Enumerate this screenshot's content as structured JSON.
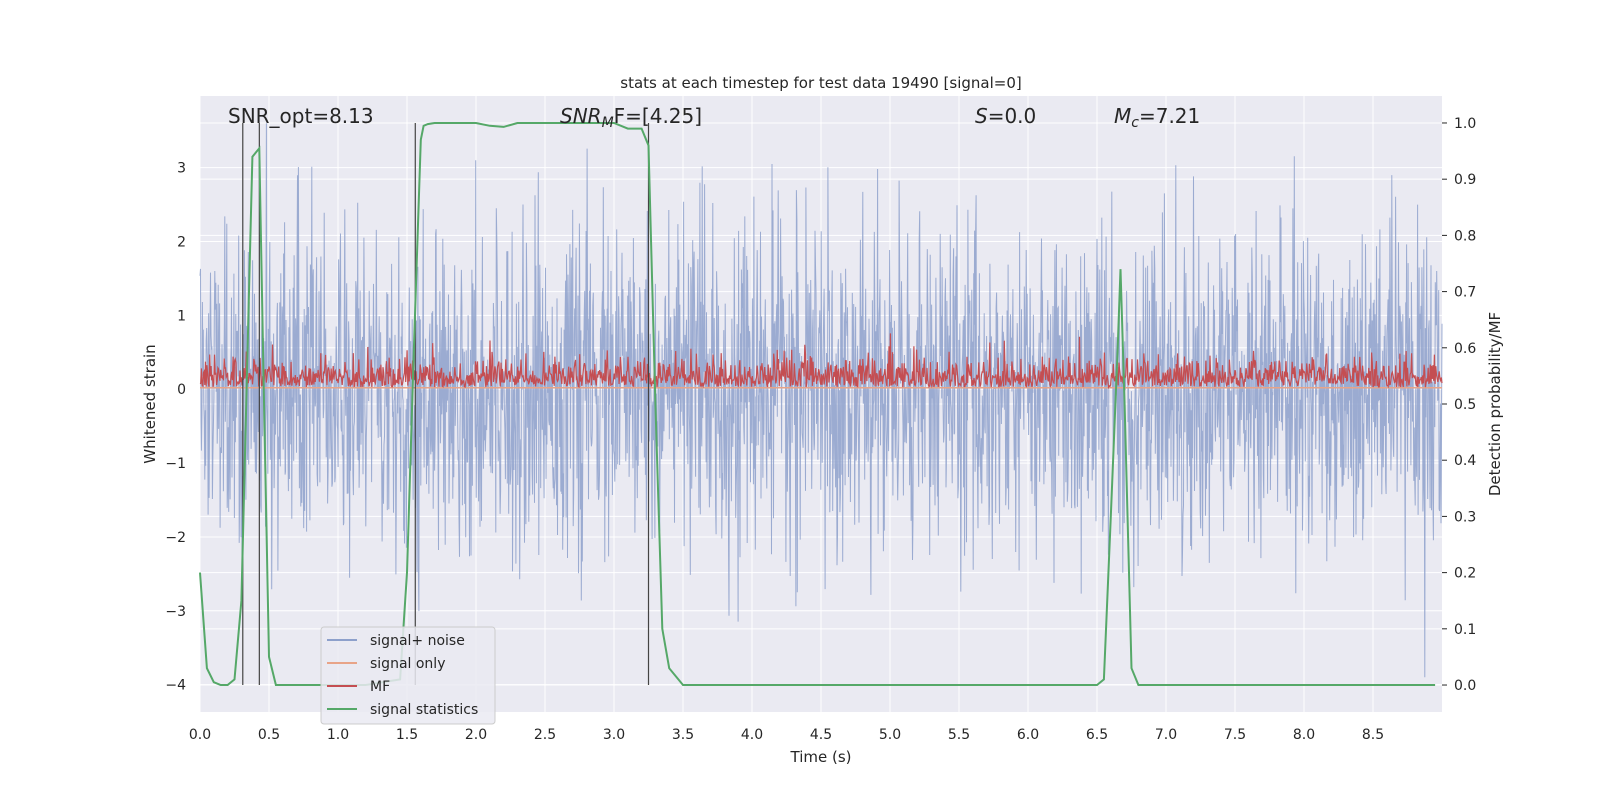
{
  "chart_data": {
    "type": "line",
    "title": "stats at each timestep for test data 19490 [signal=0]",
    "xlabel": "Time (s)",
    "ylabel_left": "Whitened strain",
    "ylabel_right": "Detection probability/MF",
    "xlim": [
      0.0,
      9.0
    ],
    "ylim_left": [
      -4.37,
      3.97
    ],
    "ylim_right": [
      -0.048,
      1.048
    ],
    "xticks": [
      "0.0",
      "0.5",
      "1.0",
      "1.5",
      "2.0",
      "2.5",
      "3.0",
      "3.5",
      "4.0",
      "4.5",
      "5.0",
      "5.5",
      "6.0",
      "6.5",
      "7.0",
      "7.5",
      "8.0",
      "8.5"
    ],
    "xtick_values": [
      0.0,
      0.5,
      1.0,
      1.5,
      2.0,
      2.5,
      3.0,
      3.5,
      4.0,
      4.5,
      5.0,
      5.5,
      6.0,
      6.5,
      7.0,
      7.5,
      8.0,
      8.5
    ],
    "yticks_left": [
      "−4",
      "−3",
      "−2",
      "−1",
      "0",
      "1",
      "2",
      "3"
    ],
    "ytick_values_left": [
      -4,
      -3,
      -2,
      -1,
      0,
      1,
      2,
      3
    ],
    "yticks_right": [
      "0.0",
      "0.1",
      "0.2",
      "0.3",
      "0.4",
      "0.5",
      "0.6",
      "0.7",
      "0.8",
      "0.9",
      "1.0"
    ],
    "ytick_values_right": [
      0.0,
      0.1,
      0.2,
      0.3,
      0.4,
      0.5,
      0.6,
      0.7,
      0.8,
      0.9,
      1.0
    ],
    "annotations": {
      "snr_opt": "SNR_opt=8.13",
      "snr_mf_main": "SNR",
      "snr_mf_sub": "M",
      "snr_mf_rest": "F=[4.25]",
      "s_main": "S",
      "s_rest": "=0.0",
      "mc_main": "M",
      "mc_sub": "c",
      "mc_rest": "=7.21"
    },
    "legend": {
      "position": "lower-left",
      "entries": [
        {
          "label": "signal+ noise",
          "color": "#8da0cb"
        },
        {
          "label": "signal only",
          "color": "#e8a488"
        },
        {
          "label": "MF",
          "color": "#c44e52"
        },
        {
          "label": "signal statistics",
          "color": "#55a868"
        }
      ]
    },
    "vertical_lines_x": [
      0.31,
      0.43,
      1.56,
      3.25
    ],
    "series": [
      {
        "name": "signal+ noise",
        "axis": "left",
        "color": "#8da0cb",
        "envelope": {
          "typical_amplitude": 1.8,
          "peak_min": -3.9,
          "peak_max": 3.6
        }
      },
      {
        "name": "signal only",
        "axis": "left",
        "color": "#e8a488",
        "values": {
          "x": [
            0.0,
            9.0
          ],
          "y": [
            0.02,
            0.02
          ]
        }
      },
      {
        "name": "MF",
        "axis": "right",
        "color": "#c44e52",
        "envelope": {
          "base": 0.53,
          "typical_max": 0.6,
          "peak_max": 0.65
        }
      },
      {
        "name": "signal statistics",
        "axis": "right",
        "color": "#55a868",
        "x": [
          0.0,
          0.05,
          0.1,
          0.15,
          0.2,
          0.25,
          0.3,
          0.35,
          0.38,
          0.43,
          0.46,
          0.5,
          0.55,
          0.75,
          1.0,
          1.2,
          1.45,
          1.5,
          1.55,
          1.6,
          1.62,
          1.65,
          1.7,
          1.8,
          2.0,
          2.1,
          2.2,
          2.3,
          2.6,
          3.0,
          3.1,
          3.2,
          3.25,
          3.3,
          3.35,
          3.4,
          3.5,
          3.7,
          4.0,
          5.0,
          6.0,
          6.4,
          6.5,
          6.55,
          6.6,
          6.65,
          6.67,
          6.7,
          6.75,
          6.8,
          7.0,
          8.0,
          8.95
        ],
        "y": [
          0.2,
          0.03,
          0.005,
          0.0,
          0.0,
          0.01,
          0.15,
          0.65,
          0.94,
          0.955,
          0.55,
          0.05,
          0.0,
          0.0,
          0.0,
          0.0,
          0.01,
          0.2,
          0.6,
          0.97,
          0.995,
          0.998,
          1.0,
          1.0,
          1.0,
          0.995,
          0.993,
          1.0,
          1.0,
          1.0,
          0.99,
          0.99,
          0.96,
          0.5,
          0.1,
          0.03,
          0.0,
          0.0,
          0.0,
          0.0,
          0.0,
          0.0,
          0.0,
          0.01,
          0.3,
          0.6,
          0.74,
          0.5,
          0.03,
          0.0,
          0.0,
          0.0,
          0.0
        ]
      }
    ]
  }
}
